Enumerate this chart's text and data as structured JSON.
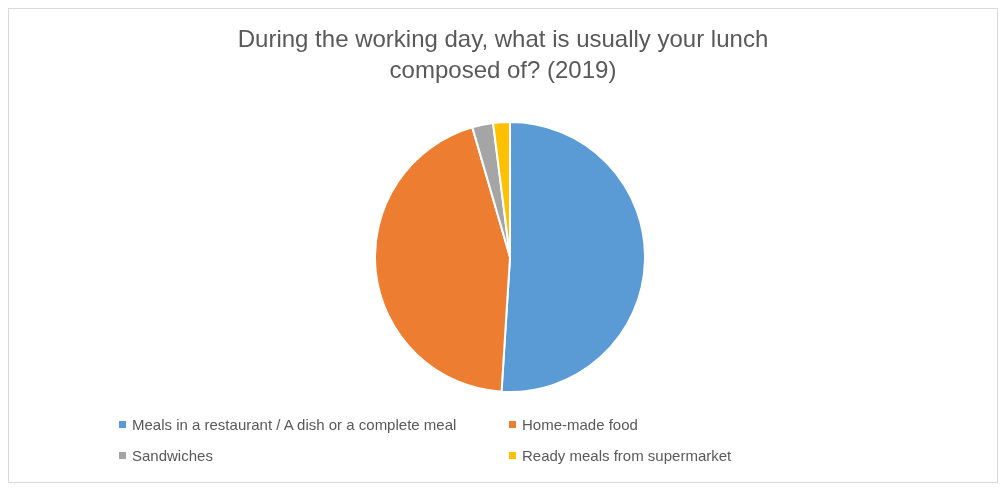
{
  "chart_data": {
    "type": "pie",
    "title": "During the working day, what is usually your lunch composed of? (2019)",
    "categories": [
      "Meals in a restaurant / A dish or a complete meal",
      "Home-made food",
      "Sandwiches",
      "Ready meals from supermarket"
    ],
    "values": [
      51,
      44.5,
      2.5,
      2
    ],
    "colors": [
      "#5b9bd5",
      "#ed7d31",
      "#a5a5a5",
      "#ffc000"
    ],
    "legend": "bottom"
  }
}
